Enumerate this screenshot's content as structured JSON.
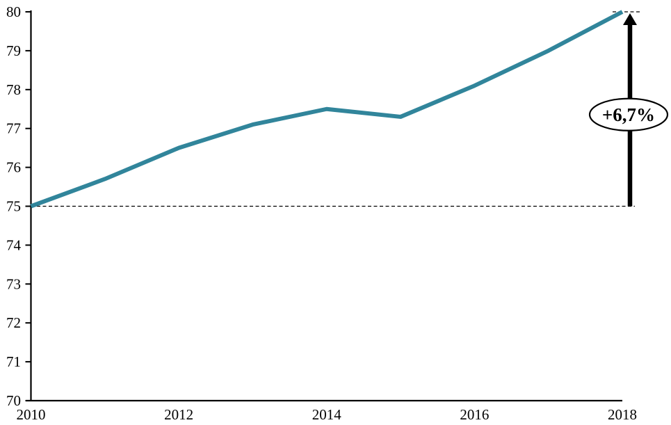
{
  "chart_data": {
    "type": "line",
    "title": "",
    "xlabel": "",
    "ylabel": "",
    "x": [
      2010,
      2011,
      2012,
      2013,
      2014,
      2015,
      2016,
      2017,
      2018
    ],
    "series": [
      {
        "name": "main-series",
        "color": "#31859B",
        "values": [
          75.0,
          75.7,
          76.5,
          77.1,
          77.5,
          77.3,
          78.1,
          79.0,
          80.0
        ]
      }
    ],
    "xlim": [
      2010,
      2018
    ],
    "ylim": [
      70,
      80
    ],
    "xticks": [
      2010,
      2012,
      2014,
      2016,
      2018
    ],
    "yticks": [
      70,
      71,
      72,
      73,
      74,
      75,
      76,
      77,
      78,
      79,
      80
    ],
    "grid": false,
    "legend_position": "none",
    "axis_color": "#000000",
    "background_color": "#ffffff",
    "annotation": {
      "label": "+6,7%",
      "from_value": 75.0,
      "to_value": 80.0,
      "arrow_color": "#000000",
      "bubble_fill": "#ffffff",
      "bubble_stroke": "#000000",
      "baseline_style": "dashed"
    }
  }
}
